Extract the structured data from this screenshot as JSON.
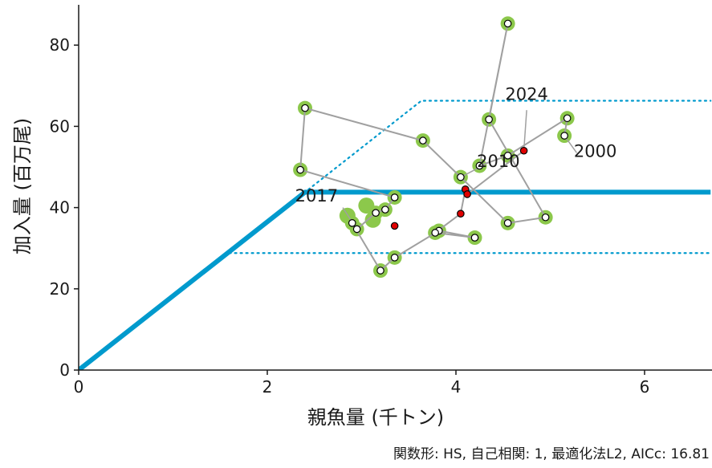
{
  "chart_data": {
    "type": "scatter",
    "xlabel": "親魚量 (千トン)",
    "ylabel": "加入量 (百万尾)",
    "xlim": [
      0,
      6.7
    ],
    "ylim": [
      0,
      89
    ],
    "x_ticks": [
      0,
      2,
      4,
      6
    ],
    "y_ticks": [
      0,
      20,
      40,
      60,
      80
    ],
    "x_tick_labels": [
      "0",
      "2",
      "4",
      "6"
    ],
    "y_tick_labels": [
      "0",
      "20",
      "40",
      "60",
      "80"
    ],
    "caption": "関数形: HS, 自己相関: 1, 最適化法L2, AICc: 16.81",
    "colors": {
      "hs_line": "#009ACD",
      "path": "#A0A0A0",
      "ring": "#8CC84B",
      "point_fill": "#FFFFFF",
      "recent_fill": "#E00000",
      "point_stroke": "#000000"
    },
    "hockey_stick": {
      "breakpoint_x": 2.4,
      "plateau_y": 43.8
    },
    "bands": {
      "upper_y": 66.3,
      "lower_y": 28.8
    },
    "series": [
      {
        "points": [
          {
            "x": 5.15,
            "y": 57.7
          },
          {
            "x": 5.18,
            "y": 62.0
          },
          {
            "x": 4.55,
            "y": 52.8
          },
          {
            "x": 4.25,
            "y": 50.3
          },
          {
            "x": 4.55,
            "y": 85.3
          },
          {
            "x": 4.35,
            "y": 61.7
          },
          {
            "x": 4.95,
            "y": 37.6
          },
          {
            "x": 4.55,
            "y": 36.2
          },
          {
            "x": 4.05,
            "y": 47.5
          },
          {
            "x": 3.65,
            "y": 56.5
          },
          {
            "x": 2.4,
            "y": 64.5
          },
          {
            "x": 2.35,
            "y": 49.3
          },
          {
            "x": 3.35,
            "y": 42.5
          },
          {
            "x": 3.25,
            "y": 39.5
          },
          {
            "x": 3.15,
            "y": 38.7
          },
          {
            "x": 2.95,
            "y": 34.7
          },
          {
            "x": 2.9,
            "y": 36.2
          },
          {
            "x": 3.2,
            "y": 24.5
          },
          {
            "x": 3.35,
            "y": 27.7
          },
          {
            "x": 3.82,
            "y": 34.3
          },
          {
            "x": 4.2,
            "y": 32.6
          },
          {
            "x": 3.78,
            "y": 33.8
          },
          {
            "x": 4.05,
            "y": 38.5
          },
          {
            "x": 4.1,
            "y": 44.5
          },
          {
            "x": 4.12,
            "y": 43.3
          },
          {
            "x": 4.72,
            "y": 54.0
          }
        ]
      }
    ],
    "recent_point_indices": [
      22,
      23,
      24,
      25
    ],
    "extra_red_point": {
      "x": 3.35,
      "y": 35.5
    },
    "filled_rings": [
      {
        "x": 3.05,
        "y": 40.5
      },
      {
        "x": 2.85,
        "y": 38.0
      },
      {
        "x": 3.12,
        "y": 37.0
      }
    ],
    "annotations": [
      {
        "text": "2000",
        "x": 5.25,
        "y": 52.5,
        "anchor": "start",
        "leader": [
          5.15,
          57.7,
          5.28,
          53.5
        ]
      },
      {
        "text": "2010",
        "x": 4.45,
        "y": 50.0,
        "anchor": "middle",
        "leader": [
          4.05,
          47.5,
          4.3,
          50.5
        ]
      },
      {
        "text": "2017",
        "x": 2.75,
        "y": 41.5,
        "anchor": "end",
        "leader": [
          2.95,
          34.7,
          2.8,
          40.0
        ]
      },
      {
        "text": "2024",
        "x": 4.75,
        "y": 66.5,
        "anchor": "middle",
        "leader": [
          4.72,
          54.0,
          4.75,
          64.0
        ]
      }
    ]
  }
}
